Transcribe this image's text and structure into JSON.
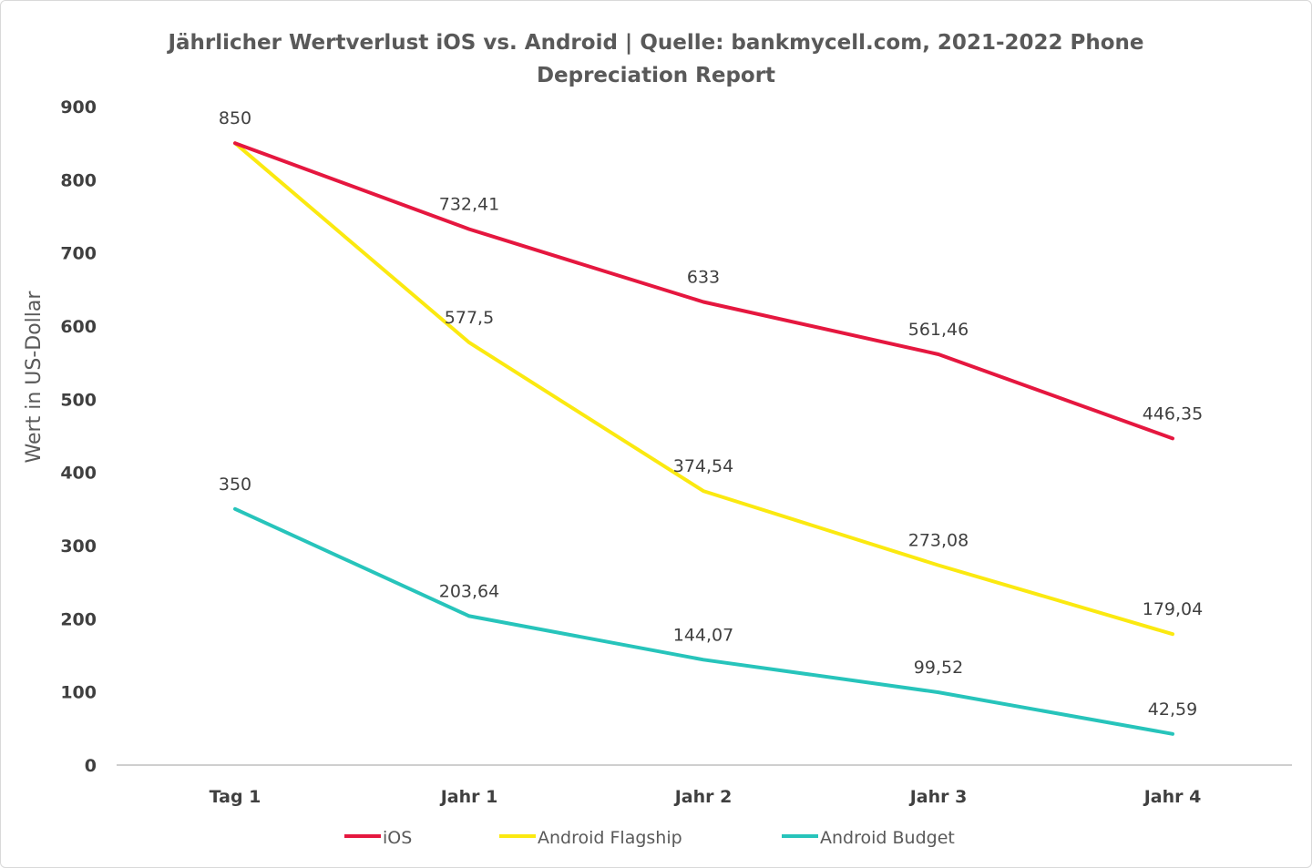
{
  "chart_data": {
    "type": "line",
    "title_lines": [
      "Jährlicher Wertverlust iOS vs. Android | Quelle: bankmycell.com, 2021-2022 Phone",
      "Depreciation Report"
    ],
    "xlabel": "",
    "ylabel": "Wert in US-Dollar",
    "ylim": [
      0,
      900
    ],
    "yticks": [
      0,
      100,
      200,
      300,
      400,
      500,
      600,
      700,
      800,
      900
    ],
    "categories": [
      "Tag 1",
      "Jahr 1",
      "Jahr 2",
      "Jahr 3",
      "Jahr 4"
    ],
    "grid": false,
    "legend_position": "bottom",
    "series": [
      {
        "name": "iOS",
        "color": "#e5173f",
        "values": [
          850,
          732.41,
          633,
          561.46,
          446.35
        ],
        "labels": [
          "850",
          "732,41",
          "633",
          "561,46",
          "446,35"
        ]
      },
      {
        "name": "Android Flagship",
        "color": "#fbe910",
        "values": [
          850,
          577.5,
          374.54,
          273.08,
          179.04
        ],
        "labels": [
          "",
          "577,5",
          "374,54",
          "273,08",
          "179,04"
        ]
      },
      {
        "name": "Android Budget",
        "color": "#27c4bb",
        "values": [
          350,
          203.64,
          144.07,
          99.52,
          42.59
        ],
        "labels": [
          "350",
          "203,64",
          "144,07",
          "99,52",
          "42,59"
        ]
      }
    ]
  }
}
